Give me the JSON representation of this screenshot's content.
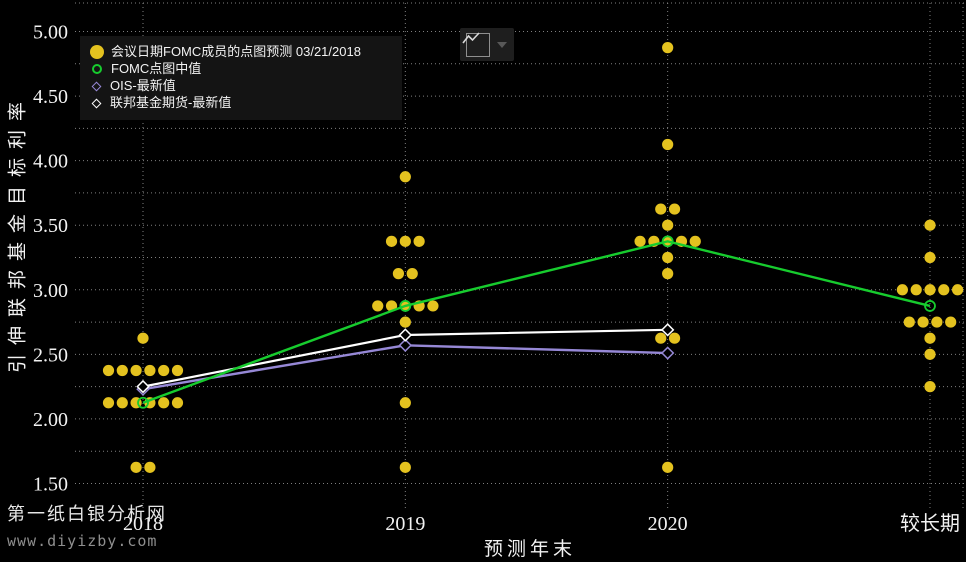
{
  "legend": {
    "items": [
      {
        "label": "会议日期FOMC成员的点图预测 03/21/2018",
        "marker": "filled-circle",
        "color": "#e4c21f"
      },
      {
        "label": "FOMC点图中值",
        "marker": "open-circle",
        "color": "#17cc2e"
      },
      {
        "label": "OIS-最新值",
        "marker": "open-diamond",
        "color": "#9688d6"
      },
      {
        "label": "联邦基金期货-最新值",
        "marker": "open-diamond",
        "color": "#ffffff"
      }
    ]
  },
  "watermark": {
    "line1": "第一纸白银分析网",
    "line2": "www.diyizby.com"
  },
  "toolbar": {
    "button": "chart-type"
  },
  "chart_data": {
    "type": "scatter",
    "title": "",
    "xlabel": "预测年末",
    "ylabel": "引伸联邦基金目标利率",
    "categories": [
      "2018",
      "2019",
      "2020",
      "较长期"
    ],
    "y_ticks": [
      "5.00",
      "4.50",
      "4.00",
      "3.50",
      "3.00",
      "2.50",
      "2.00",
      "1.50"
    ],
    "ylim": [
      1.3,
      5.2
    ],
    "grid": {
      "style": "dotted",
      "h_step": 0.25,
      "v_lines": "per-category"
    },
    "legend_position": "top-left",
    "colors": {
      "dots": "#e4c21f",
      "median": "#17cc2e",
      "ois": "#9688d6",
      "futures": "#ffffff",
      "grid": "#8d8d8d",
      "text": "#f2f2f2",
      "background": "#000000"
    },
    "dot_columns": [
      {
        "category": "2018",
        "rows": [
          {
            "value": 2.625,
            "offsets": [
              0
            ]
          },
          {
            "value": 2.375,
            "offsets": [
              -2.5,
              -1.5,
              -0.5,
              0.5,
              1.5,
              2.5
            ]
          },
          {
            "value": 2.125,
            "offsets": [
              -2.5,
              -1.5,
              -0.5,
              0.5,
              1.5,
              2.5
            ]
          },
          {
            "value": 1.625,
            "offsets": [
              -0.5,
              0.5
            ]
          }
        ]
      },
      {
        "category": "2019",
        "rows": [
          {
            "value": 3.875,
            "offsets": [
              0
            ]
          },
          {
            "value": 3.375,
            "offsets": [
              -1,
              0,
              1
            ]
          },
          {
            "value": 3.125,
            "offsets": [
              -0.5,
              0.5
            ]
          },
          {
            "value": 2.875,
            "offsets": [
              -2,
              -1,
              0,
              1,
              2
            ]
          },
          {
            "value": 2.75,
            "offsets": [
              0
            ]
          },
          {
            "value": 2.125,
            "offsets": [
              0
            ]
          },
          {
            "value": 1.625,
            "offsets": [
              0
            ]
          }
        ]
      },
      {
        "category": "2020",
        "rows": [
          {
            "value": 4.875,
            "offsets": [
              0
            ]
          },
          {
            "value": 4.125,
            "offsets": [
              0
            ]
          },
          {
            "value": 3.625,
            "offsets": [
              -0.5,
              0.5
            ]
          },
          {
            "value": 3.5,
            "offsets": [
              0
            ]
          },
          {
            "value": 3.375,
            "offsets": [
              -2,
              -1,
              0,
              1,
              2
            ]
          },
          {
            "value": 3.25,
            "offsets": [
              0
            ]
          },
          {
            "value": 3.125,
            "offsets": [
              0
            ]
          },
          {
            "value": 2.625,
            "offsets": [
              -0.5,
              0.5
            ]
          },
          {
            "value": 1.625,
            "offsets": [
              0
            ]
          }
        ]
      },
      {
        "category": "较长期",
        "rows": [
          {
            "value": 3.5,
            "offsets": [
              0
            ]
          },
          {
            "value": 3.25,
            "offsets": [
              0
            ]
          },
          {
            "value": 3.0,
            "offsets": [
              -2,
              -1,
              0,
              1,
              2
            ]
          },
          {
            "value": 2.75,
            "offsets": [
              -1.5,
              -0.5,
              0.5,
              1.5
            ]
          },
          {
            "value": 2.625,
            "offsets": [
              0
            ]
          },
          {
            "value": 2.5,
            "offsets": [
              0
            ]
          },
          {
            "value": 2.25,
            "offsets": [
              0
            ]
          }
        ]
      }
    ],
    "series": [
      {
        "name": "FOMC点图中值",
        "type": "line",
        "marker": "open-circle",
        "color": "#17cc2e",
        "width": 2.4,
        "x": [
          "2018",
          "2019",
          "2020",
          "较长期"
        ],
        "values": [
          2.125,
          2.875,
          3.375,
          2.875
        ]
      },
      {
        "name": "OIS-最新值",
        "type": "line",
        "marker": "open-diamond",
        "color": "#9688d6",
        "width": 2.4,
        "x": [
          "2018",
          "2019",
          "2020"
        ],
        "values": [
          2.23,
          2.57,
          2.51
        ]
      },
      {
        "name": "联邦基金期货-最新值",
        "type": "line",
        "marker": "open-diamond",
        "color": "#ffffff",
        "width": 2.2,
        "x": [
          "2018",
          "2019",
          "2020"
        ],
        "values": [
          2.25,
          2.65,
          2.69
        ]
      }
    ]
  }
}
